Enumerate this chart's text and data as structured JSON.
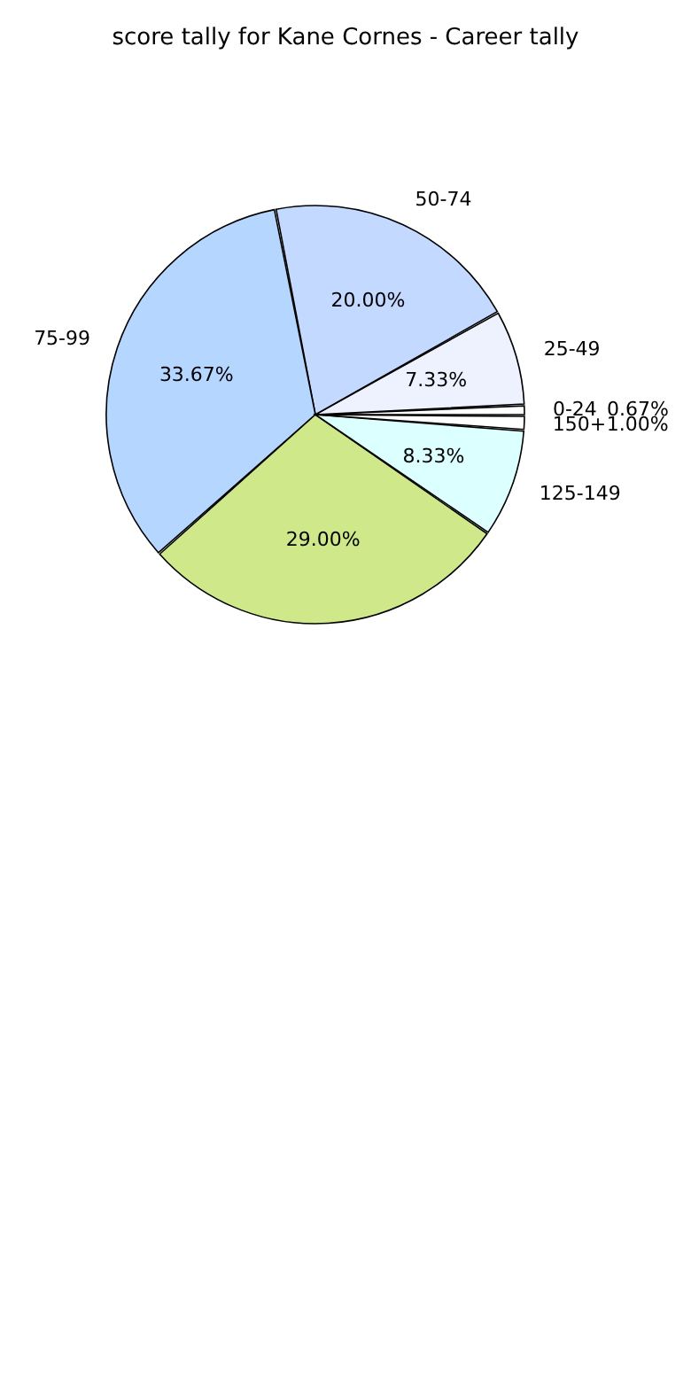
{
  "chart_data": {
    "type": "pie",
    "title": "score tally for Kane Cornes - Career tally",
    "categories": [
      "0-24",
      "25-49",
      "50-74",
      "75-99",
      null,
      "125-149",
      "150+"
    ],
    "values": [
      0.67,
      7.33,
      20.0,
      33.67,
      29.0,
      8.33,
      1.0
    ],
    "value_labels": [
      "0.67%",
      "7.33%",
      "20.00%",
      "33.67%",
      "29.00%",
      "8.33%",
      "1.00%"
    ],
    "colors": [
      "#ffffff",
      "#eef2ff",
      "#c4d9ff",
      "#b5d6ff",
      "#cfe98a",
      "#dcffff",
      "#ffffff"
    ],
    "legend": false
  }
}
